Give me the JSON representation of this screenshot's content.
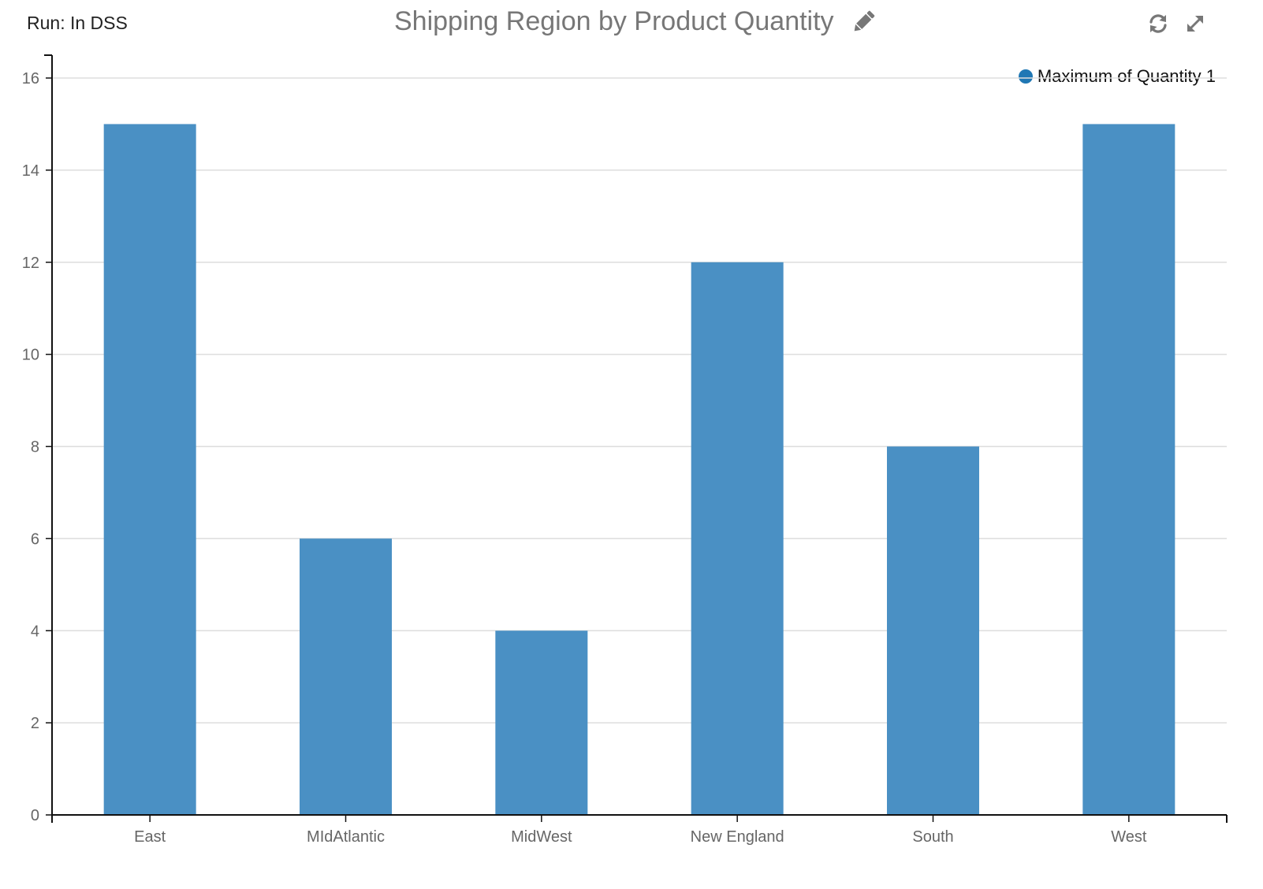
{
  "header": {
    "run_label": "Run: In DSS",
    "title": "Shipping Region by Product Quantity",
    "edit_icon": "pencil-icon",
    "refresh_icon": "refresh-icon",
    "expand_icon": "expand-icon"
  },
  "colors": {
    "bar": "#4a90c4",
    "legend_dot": "#1f77b4",
    "grid": "#dddddd",
    "axis": "#111111",
    "icon": "#777777"
  },
  "legend": {
    "label": "Maximum of Quantity 1",
    "placement": "top-right"
  },
  "chart_data": {
    "type": "bar",
    "title": "Shipping Region by Product Quantity",
    "xlabel": "",
    "ylabel": "",
    "categories": [
      "East",
      "MIdAtlantic",
      "MidWest",
      "New England",
      "South",
      "West"
    ],
    "series": [
      {
        "name": "Maximum of Quantity 1",
        "values": [
          15,
          6,
          4,
          12,
          8,
          15
        ]
      }
    ],
    "ylim": [
      0,
      16
    ],
    "yticks": [
      0,
      2,
      4,
      6,
      8,
      10,
      12,
      14,
      16
    ],
    "grid": true,
    "legend_placement": "top-right"
  }
}
